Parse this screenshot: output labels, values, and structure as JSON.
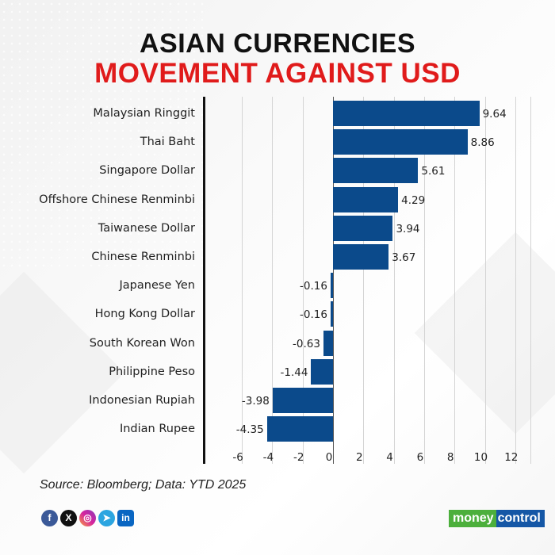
{
  "header": {
    "title_line1": "ASIAN CURRENCIES",
    "title_line2": "MOVEMENT AGAINST USD"
  },
  "chart_data": {
    "type": "bar",
    "orientation": "horizontal",
    "title": "ASIAN CURRENCIES MOVEMENT AGAINST USD",
    "xlabel": "",
    "ylabel": "",
    "xlim": [
      -6,
      12
    ],
    "x_ticks": [
      -6,
      -4,
      -2,
      0,
      2,
      4,
      6,
      8,
      10,
      12
    ],
    "grid": true,
    "legend": null,
    "bar_color": "#0b4a8b",
    "categories": [
      "Malaysian Ringgit",
      "Thai Baht",
      "Singapore Dollar",
      "Offshore Chinese Renminbi",
      "Taiwanese Dollar",
      "Chinese Renminbi",
      "Japanese Yen",
      "Hong Kong Dollar",
      "South Korean Won",
      "Philippine Peso",
      "Indonesian Rupiah",
      "Indian Rupee"
    ],
    "values": [
      9.64,
      8.86,
      5.61,
      4.29,
      3.94,
      3.67,
      -0.16,
      -0.16,
      -0.63,
      -1.44,
      -3.98,
      -4.35
    ],
    "value_labels": [
      "9.64",
      "8.86",
      "5.61",
      "4.29",
      "3.94",
      "3.67",
      "-0.16",
      "-0.16",
      "-0.63",
      "-1.44",
      "-3.98",
      "-4.35"
    ]
  },
  "axis": {
    "ticks": [
      "-6",
      "-4",
      "-2",
      "0",
      "2",
      "4",
      "6",
      "8",
      "10",
      "12"
    ]
  },
  "footer": {
    "source": "Source: Bloomberg; Data: YTD 2025",
    "social_icons": [
      "facebook-icon",
      "x-icon",
      "instagram-icon",
      "telegram-icon",
      "linkedin-icon"
    ],
    "social_glyphs": [
      "f",
      "X",
      "◎",
      "➤",
      "in"
    ],
    "logo_part1": "money",
    "logo_part2": "control"
  },
  "colors": {
    "title_black": "#111111",
    "title_red": "#e01b1b",
    "bar": "#0b4a8b"
  }
}
